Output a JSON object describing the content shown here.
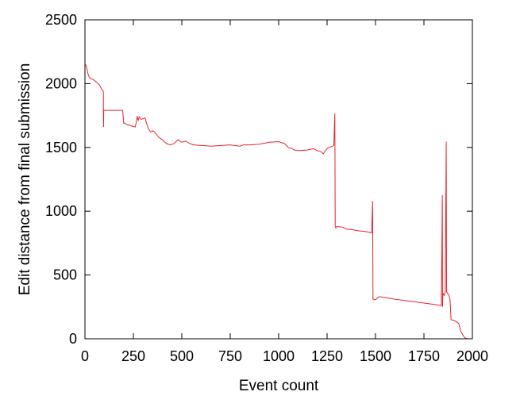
{
  "chart_data": {
    "type": "line",
    "title": "",
    "xlabel": "Event count",
    "ylabel": "Edit distance from final submission",
    "xlim": [
      0,
      2000
    ],
    "ylim": [
      0,
      2500
    ],
    "xticks": [
      0,
      250,
      500,
      750,
      1000,
      1250,
      1500,
      1750,
      2000
    ],
    "yticks": [
      0,
      500,
      1000,
      1500,
      2000,
      2500
    ],
    "xtick_labels": [
      "0",
      "250",
      "500",
      "750",
      "1000",
      "1250",
      "1500",
      "1750",
      "2000"
    ],
    "ytick_labels": [
      "0",
      "500",
      "1000",
      "1500",
      "2000",
      "2500"
    ],
    "grid": false,
    "series": [
      {
        "color": "#e8232a",
        "x": [
          0,
          5,
          10,
          15,
          22,
          30,
          45,
          60,
          75,
          85,
          90,
          95,
          96,
          97,
          100,
          110,
          150,
          195,
          200,
          205,
          215,
          230,
          245,
          260,
          265,
          270,
          275,
          280,
          290,
          300,
          310,
          320,
          330,
          340,
          350,
          360,
          380,
          400,
          420,
          440,
          460,
          480,
          500,
          520,
          540,
          560,
          600,
          650,
          700,
          750,
          800,
          820,
          850,
          900,
          950,
          1000,
          1030,
          1050,
          1070,
          1080,
          1100,
          1150,
          1180,
          1200,
          1220,
          1230,
          1240,
          1250,
          1260,
          1280,
          1285,
          1290,
          1292,
          1295,
          1300,
          1330,
          1350,
          1380,
          1420,
          1450,
          1480,
          1485,
          1487,
          1490,
          1500,
          1510,
          1520,
          1540,
          1560,
          1600,
          1650,
          1700,
          1750,
          1800,
          1820,
          1840,
          1845,
          1846,
          1848,
          1850,
          1855,
          1860,
          1865,
          1867,
          1870,
          1875,
          1880,
          1885,
          1890,
          1900,
          1910,
          1920,
          1930,
          1940,
          1950,
          1960,
          1965,
          1970,
          1980,
          1985,
          1990,
          1995,
          2000
        ],
        "values": [
          2150,
          2145,
          2120,
          2080,
          2050,
          2040,
          2030,
          2010,
          1990,
          1960,
          1950,
          1940,
          1660,
          1790,
          1790,
          1790,
          1790,
          1790,
          1690,
          1690,
          1680,
          1675,
          1665,
          1660,
          1700,
          1745,
          1710,
          1740,
          1720,
          1725,
          1730,
          1680,
          1640,
          1620,
          1630,
          1620,
          1580,
          1560,
          1530,
          1520,
          1530,
          1560,
          1540,
          1550,
          1530,
          1520,
          1515,
          1510,
          1515,
          1520,
          1510,
          1520,
          1520,
          1525,
          1540,
          1545,
          1530,
          1500,
          1490,
          1480,
          1475,
          1480,
          1490,
          1475,
          1465,
          1450,
          1470,
          1490,
          1500,
          1510,
          1520,
          1765,
          880,
          870,
          880,
          875,
          860,
          855,
          845,
          840,
          830,
          1080,
          310,
          310,
          305,
          320,
          330,
          325,
          320,
          310,
          300,
          290,
          280,
          270,
          265,
          260,
          1125,
          250,
          360,
          350,
          340,
          370,
          1545,
          370,
          360,
          350,
          340,
          300,
          150,
          145,
          140,
          130,
          120,
          60,
          30,
          10,
          5,
          2,
          0,
          0,
          0,
          0,
          0
        ]
      }
    ]
  }
}
